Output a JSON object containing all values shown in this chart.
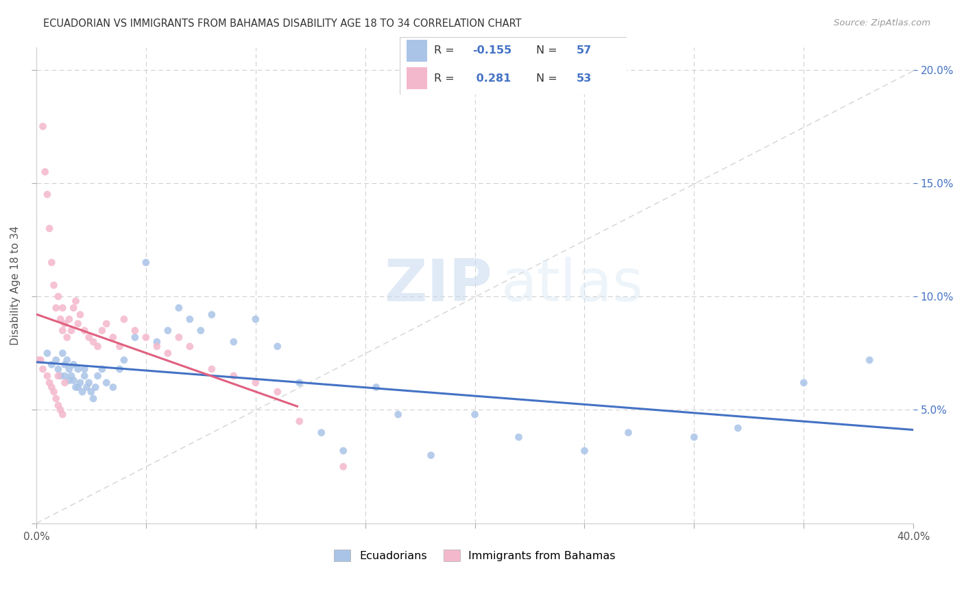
{
  "title": "ECUADORIAN VS IMMIGRANTS FROM BAHAMAS DISABILITY AGE 18 TO 34 CORRELATION CHART",
  "source": "Source: ZipAtlas.com",
  "ylabel": "Disability Age 18 to 34",
  "x_min": 0.0,
  "x_max": 0.4,
  "y_min": 0.0,
  "y_max": 0.21,
  "blue_color": "#aac4e8",
  "pink_color": "#f4b8cc",
  "blue_line_color": "#4472c4",
  "pink_line_color": "#e06080",
  "diag_line_color": "#c8c8c8",
  "legend_label_blue": "Ecuadorians",
  "legend_label_pink": "Immigrants from Bahamas",
  "watermark_zip": "ZIP",
  "watermark_atlas": "atlas",
  "blue_x": [
    0.005,
    0.007,
    0.009,
    0.01,
    0.011,
    0.012,
    0.013,
    0.013,
    0.014,
    0.015,
    0.015,
    0.016,
    0.017,
    0.017,
    0.018,
    0.019,
    0.019,
    0.02,
    0.021,
    0.022,
    0.022,
    0.023,
    0.024,
    0.025,
    0.026,
    0.027,
    0.028,
    0.03,
    0.032,
    0.035,
    0.038,
    0.04,
    0.045,
    0.05,
    0.055,
    0.06,
    0.065,
    0.07,
    0.075,
    0.08,
    0.09,
    0.1,
    0.11,
    0.12,
    0.13,
    0.14,
    0.155,
    0.165,
    0.18,
    0.2,
    0.22,
    0.25,
    0.27,
    0.3,
    0.32,
    0.35,
    0.38
  ],
  "blue_y": [
    0.075,
    0.07,
    0.072,
    0.068,
    0.065,
    0.075,
    0.07,
    0.065,
    0.072,
    0.068,
    0.063,
    0.065,
    0.07,
    0.063,
    0.06,
    0.068,
    0.06,
    0.062,
    0.058,
    0.065,
    0.068,
    0.06,
    0.062,
    0.058,
    0.055,
    0.06,
    0.065,
    0.068,
    0.062,
    0.06,
    0.068,
    0.072,
    0.082,
    0.115,
    0.08,
    0.085,
    0.095,
    0.09,
    0.085,
    0.092,
    0.08,
    0.09,
    0.078,
    0.062,
    0.04,
    0.032,
    0.06,
    0.048,
    0.03,
    0.048,
    0.038,
    0.032,
    0.04,
    0.038,
    0.042,
    0.062,
    0.072
  ],
  "pink_x": [
    0.001,
    0.002,
    0.003,
    0.003,
    0.004,
    0.005,
    0.005,
    0.006,
    0.006,
    0.007,
    0.007,
    0.008,
    0.008,
    0.009,
    0.009,
    0.01,
    0.01,
    0.01,
    0.011,
    0.011,
    0.012,
    0.012,
    0.012,
    0.013,
    0.013,
    0.014,
    0.015,
    0.016,
    0.017,
    0.018,
    0.019,
    0.02,
    0.022,
    0.024,
    0.026,
    0.028,
    0.03,
    0.032,
    0.035,
    0.038,
    0.04,
    0.045,
    0.05,
    0.055,
    0.06,
    0.065,
    0.07,
    0.08,
    0.09,
    0.1,
    0.11,
    0.12,
    0.14
  ],
  "pink_y": [
    0.072,
    0.072,
    0.175,
    0.068,
    0.155,
    0.065,
    0.145,
    0.062,
    0.13,
    0.06,
    0.115,
    0.058,
    0.105,
    0.055,
    0.095,
    0.052,
    0.065,
    0.1,
    0.05,
    0.09,
    0.048,
    0.085,
    0.095,
    0.062,
    0.088,
    0.082,
    0.09,
    0.085,
    0.095,
    0.098,
    0.088,
    0.092,
    0.085,
    0.082,
    0.08,
    0.078,
    0.085,
    0.088,
    0.082,
    0.078,
    0.09,
    0.085,
    0.082,
    0.078,
    0.075,
    0.082,
    0.078,
    0.068,
    0.065,
    0.062,
    0.058,
    0.045,
    0.025
  ]
}
